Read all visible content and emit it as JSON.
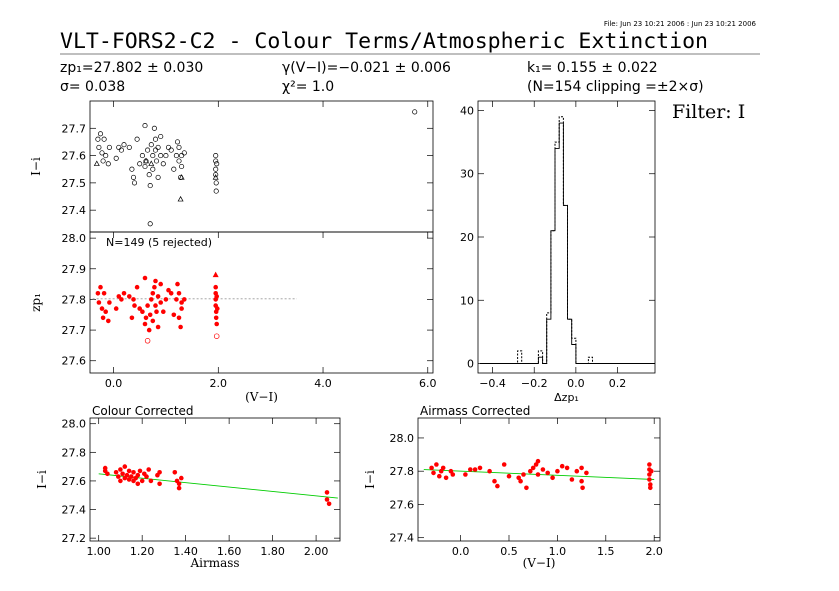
{
  "header": {
    "file_stamp": "File: Jun 23 10:21 2006 : Jun 23 10:21 2006",
    "title": "VLT-FORS2-C2 - Colour Terms/Atmospheric Extinction",
    "zp_text": "zp₁=27.802 ± 0.030",
    "sigma_text": "σ= 0.038",
    "gamma_text": "γ(V−I)=−0.021 ± 0.006",
    "chi_text": "χ²= 1.0",
    "k_text": "k₁= 0.155 ± 0.022",
    "clip_text": "(N=154 clipping =±2×σ)",
    "filter_text": "Filter: I"
  },
  "colors": {
    "data": "#ff0000",
    "fit": "#00cc00",
    "axis": "#000000",
    "hist": "#000000",
    "ref": "#999999"
  },
  "chart_data": [
    {
      "id": "top_left_raw",
      "type": "scatter",
      "ylabel": "I−i",
      "xlim": [
        -0.45,
        6.1
      ],
      "ylim": [
        27.32,
        27.8
      ],
      "yticks": [
        27.4,
        27.5,
        27.6,
        27.7
      ],
      "marker": "open-circle",
      "points": [
        [
          -0.3,
          27.66
        ],
        [
          -0.28,
          27.63
        ],
        [
          -0.25,
          27.68
        ],
        [
          -0.22,
          27.61
        ],
        [
          -0.2,
          27.58
        ],
        [
          -0.18,
          27.66
        ],
        [
          -0.15,
          27.6
        ],
        [
          -0.1,
          27.57
        ],
        [
          -0.08,
          27.63
        ],
        [
          0.05,
          27.59
        ],
        [
          0.1,
          27.63
        ],
        [
          0.15,
          27.62
        ],
        [
          0.2,
          27.64
        ],
        [
          0.3,
          27.63
        ],
        [
          0.35,
          27.55
        ],
        [
          0.38,
          27.52
        ],
        [
          0.4,
          27.5
        ],
        [
          0.45,
          27.66
        ],
        [
          0.5,
          27.57
        ],
        [
          0.55,
          27.6
        ],
        [
          0.6,
          27.71
        ],
        [
          0.6,
          27.56
        ],
        [
          0.62,
          27.58
        ],
        [
          0.65,
          27.62
        ],
        [
          0.68,
          27.53
        ],
        [
          0.7,
          27.49
        ],
        [
          0.7,
          27.35
        ],
        [
          0.72,
          27.64
        ],
        [
          0.75,
          27.6
        ],
        [
          0.75,
          27.55
        ],
        [
          0.78,
          27.7
        ],
        [
          0.8,
          27.66
        ],
        [
          0.8,
          27.62
        ],
        [
          0.82,
          27.58
        ],
        [
          0.85,
          27.63
        ],
        [
          0.85,
          27.52
        ],
        [
          0.9,
          27.6
        ],
        [
          0.9,
          27.67
        ],
        [
          0.95,
          27.57
        ],
        [
          1.0,
          27.6
        ],
        [
          1.05,
          27.63
        ],
        [
          1.1,
          27.62
        ],
        [
          1.15,
          27.55
        ],
        [
          1.2,
          27.6
        ],
        [
          1.22,
          27.65
        ],
        [
          1.25,
          27.63
        ],
        [
          1.25,
          27.58
        ],
        [
          1.28,
          27.52
        ],
        [
          1.3,
          27.6
        ],
        [
          1.3,
          27.56
        ],
        [
          1.35,
          27.61
        ],
        [
          1.95,
          27.6
        ],
        [
          1.95,
          27.58
        ],
        [
          1.95,
          27.55
        ],
        [
          1.95,
          27.53
        ],
        [
          1.96,
          27.5
        ],
        [
          1.96,
          27.47
        ],
        [
          1.97,
          27.57
        ],
        [
          5.75,
          27.76
        ]
      ],
      "points_triangle": [
        [
          -0.32,
          27.57
        ],
        [
          0.62,
          27.58
        ],
        [
          0.72,
          27.57
        ],
        [
          1.28,
          27.44
        ],
        [
          1.3,
          27.52
        ],
        [
          1.95,
          27.52
        ]
      ]
    },
    {
      "id": "middle_left_zp",
      "type": "scatter",
      "ylabel": "zp₁",
      "xlabel": "(V−I)",
      "annotation": "N=149 (5 rejected)",
      "xlim": [
        -0.45,
        6.1
      ],
      "ylim": [
        27.56,
        28.02
      ],
      "xticks": [
        0.0,
        2.0,
        4.0,
        6.0
      ],
      "xtick_labels": [
        "0.0",
        "2.0",
        "4.0",
        "6.0"
      ],
      "yticks": [
        27.6,
        27.7,
        27.8,
        27.9,
        28.0
      ],
      "reference_line": {
        "y": 27.802,
        "x0": -0.4,
        "x1": 3.5
      },
      "points": [
        [
          -0.3,
          27.82
        ],
        [
          -0.28,
          27.79
        ],
        [
          -0.25,
          27.84
        ],
        [
          -0.22,
          27.77
        ],
        [
          -0.2,
          27.74
        ],
        [
          -0.18,
          27.82
        ],
        [
          -0.15,
          27.76
        ],
        [
          -0.1,
          27.73
        ],
        [
          -0.08,
          27.79
        ],
        [
          0.05,
          27.77
        ],
        [
          0.1,
          27.81
        ],
        [
          0.15,
          27.8
        ],
        [
          0.2,
          27.82
        ],
        [
          0.3,
          27.81
        ],
        [
          0.35,
          27.74
        ],
        [
          0.38,
          27.8
        ],
        [
          0.4,
          27.78
        ],
        [
          0.45,
          27.84
        ],
        [
          0.5,
          27.77
        ],
        [
          0.55,
          27.76
        ],
        [
          0.6,
          27.87
        ],
        [
          0.6,
          27.72
        ],
        [
          0.62,
          27.74
        ],
        [
          0.65,
          27.78
        ],
        [
          0.68,
          27.7
        ],
        [
          0.7,
          27.75
        ],
        [
          0.72,
          27.8
        ],
        [
          0.75,
          27.82
        ],
        [
          0.75,
          27.73
        ],
        [
          0.78,
          27.84
        ],
        [
          0.8,
          27.86
        ],
        [
          0.8,
          27.78
        ],
        [
          0.82,
          27.76
        ],
        [
          0.85,
          27.81
        ],
        [
          0.85,
          27.71
        ],
        [
          0.9,
          27.79
        ],
        [
          0.9,
          27.85
        ],
        [
          0.95,
          27.76
        ],
        [
          1.0,
          27.8
        ],
        [
          1.05,
          27.83
        ],
        [
          1.1,
          27.82
        ],
        [
          1.15,
          27.75
        ],
        [
          1.2,
          27.8
        ],
        [
          1.22,
          27.85
        ],
        [
          1.25,
          27.82
        ],
        [
          1.25,
          27.74
        ],
        [
          1.28,
          27.71
        ],
        [
          1.3,
          27.79
        ],
        [
          1.3,
          27.77
        ],
        [
          1.35,
          27.8
        ],
        [
          1.95,
          27.84
        ],
        [
          1.95,
          27.82
        ],
        [
          1.95,
          27.8
        ],
        [
          1.95,
          27.78
        ],
        [
          1.96,
          27.76
        ],
        [
          1.96,
          27.74
        ],
        [
          1.97,
          27.81
        ],
        [
          1.97,
          27.72
        ],
        [
          1.98,
          27.77
        ]
      ],
      "points_triangle": [
        [
          1.95,
          27.88
        ]
      ],
      "rejected": [
        [
          0.65,
          27.665
        ],
        [
          1.97,
          27.68
        ]
      ]
    },
    {
      "id": "histogram",
      "type": "histogram",
      "xlabel": "Δzp₁",
      "xlim": [
        -0.47,
        0.38
      ],
      "ylim": [
        -1.5,
        41.5
      ],
      "xticks": [
        -0.4,
        -0.2,
        0.0,
        0.2
      ],
      "xtick_labels": [
        "−0.4",
        "−0.2",
        "0.0",
        "0.2"
      ],
      "yticks": [
        0,
        10,
        20,
        30,
        40
      ],
      "bin_width": 0.02,
      "bin_start": -0.46,
      "counts_all": [
        0,
        0,
        0,
        0,
        0,
        0,
        0,
        0,
        0,
        2,
        0,
        0,
        0,
        0,
        2,
        0,
        8,
        21,
        35,
        39,
        25,
        7,
        4,
        0,
        0,
        0,
        1,
        0,
        0,
        0,
        0,
        0,
        0,
        0,
        0,
        0,
        0,
        0,
        0,
        0,
        0,
        0
      ],
      "counts_kept": [
        0,
        0,
        0,
        0,
        0,
        0,
        0,
        0,
        0,
        0,
        0,
        0,
        0,
        0,
        1,
        0,
        7,
        21,
        34,
        38,
        25,
        7,
        3,
        0,
        0,
        0,
        0,
        0,
        0,
        0,
        0,
        0,
        0,
        0,
        0,
        0,
        0,
        0,
        0,
        0,
        0,
        0
      ]
    },
    {
      "id": "colour_corrected",
      "type": "scatter",
      "title": "Colour Corrected",
      "ylabel": "I−i",
      "xlabel": "Airmass",
      "xlim": [
        0.96,
        2.11
      ],
      "ylim": [
        27.18,
        28.04
      ],
      "xticks": [
        1.0,
        1.2,
        1.4,
        1.6,
        1.8,
        2.0
      ],
      "xtick_labels": [
        "1.00",
        "1.20",
        "1.40",
        "1.60",
        "1.80",
        "2.00"
      ],
      "yticks": [
        27.2,
        27.4,
        27.6,
        27.8,
        28.0
      ],
      "fit_line": {
        "x0": 1.0,
        "y0": 27.65,
        "x1": 2.1,
        "y1": 27.48
      },
      "points": [
        [
          1.03,
          27.67
        ],
        [
          1.04,
          27.65
        ],
        [
          1.03,
          27.69
        ],
        [
          1.08,
          27.66
        ],
        [
          1.09,
          27.63
        ],
        [
          1.1,
          27.68
        ],
        [
          1.1,
          27.6
        ],
        [
          1.11,
          27.65
        ],
        [
          1.12,
          27.62
        ],
        [
          1.12,
          27.7
        ],
        [
          1.13,
          27.64
        ],
        [
          1.14,
          27.61
        ],
        [
          1.14,
          27.67
        ],
        [
          1.15,
          27.63
        ],
        [
          1.16,
          27.6
        ],
        [
          1.16,
          27.66
        ],
        [
          1.17,
          27.62
        ],
        [
          1.18,
          27.58
        ],
        [
          1.18,
          27.64
        ],
        [
          1.19,
          27.67
        ],
        [
          1.2,
          27.6
        ],
        [
          1.21,
          27.65
        ],
        [
          1.22,
          27.63
        ],
        [
          1.23,
          27.68
        ],
        [
          1.24,
          27.6
        ],
        [
          1.27,
          27.64
        ],
        [
          1.28,
          27.58
        ],
        [
          1.28,
          27.66
        ],
        [
          1.35,
          27.66
        ],
        [
          1.36,
          27.6
        ],
        [
          1.37,
          27.58
        ],
        [
          1.37,
          27.55
        ],
        [
          1.38,
          27.62
        ],
        [
          2.05,
          27.52
        ],
        [
          2.05,
          27.47
        ],
        [
          2.06,
          27.44
        ]
      ]
    },
    {
      "id": "airmass_corrected",
      "type": "scatter",
      "title": "Airmass Corrected",
      "ylabel": "I−i",
      "xlabel": "(V−I)",
      "xlim": [
        -0.44,
        2.06
      ],
      "ylim": [
        27.38,
        28.12
      ],
      "xticks": [
        0.0,
        0.5,
        1.0,
        1.5,
        2.0
      ],
      "xtick_labels": [
        "0.0",
        "0.5",
        "1.0",
        "1.5",
        "2.0"
      ],
      "yticks": [
        27.4,
        27.6,
        27.8,
        28.0
      ],
      "fit_line": {
        "x0": -0.38,
        "y0": 27.81,
        "x1": 2.0,
        "y1": 27.75
      },
      "points": [
        [
          -0.3,
          27.82
        ],
        [
          -0.28,
          27.79
        ],
        [
          -0.25,
          27.84
        ],
        [
          -0.22,
          27.77
        ],
        [
          -0.2,
          27.8
        ],
        [
          -0.18,
          27.82
        ],
        [
          -0.15,
          27.76
        ],
        [
          -0.1,
          27.8
        ],
        [
          -0.08,
          27.78
        ],
        [
          0.05,
          27.78
        ],
        [
          0.1,
          27.81
        ],
        [
          0.15,
          27.81
        ],
        [
          0.2,
          27.82
        ],
        [
          0.3,
          27.8
        ],
        [
          0.35,
          27.74
        ],
        [
          0.38,
          27.71
        ],
        [
          0.45,
          27.84
        ],
        [
          0.5,
          27.77
        ],
        [
          0.6,
          27.76
        ],
        [
          0.62,
          27.74
        ],
        [
          0.65,
          27.78
        ],
        [
          0.68,
          27.7
        ],
        [
          0.72,
          27.8
        ],
        [
          0.75,
          27.82
        ],
        [
          0.78,
          27.84
        ],
        [
          0.8,
          27.86
        ],
        [
          0.8,
          27.78
        ],
        [
          0.85,
          27.81
        ],
        [
          0.9,
          27.79
        ],
        [
          0.95,
          27.76
        ],
        [
          1.0,
          27.8
        ],
        [
          1.05,
          27.83
        ],
        [
          1.1,
          27.82
        ],
        [
          1.15,
          27.75
        ],
        [
          1.2,
          27.8
        ],
        [
          1.25,
          27.82
        ],
        [
          1.25,
          27.74
        ],
        [
          1.26,
          27.7
        ],
        [
          1.3,
          27.79
        ],
        [
          1.95,
          27.84
        ],
        [
          1.95,
          27.81
        ],
        [
          1.95,
          27.78
        ],
        [
          1.95,
          27.75
        ],
        [
          1.96,
          27.72
        ],
        [
          1.96,
          27.7
        ],
        [
          1.97,
          27.8
        ]
      ]
    }
  ]
}
